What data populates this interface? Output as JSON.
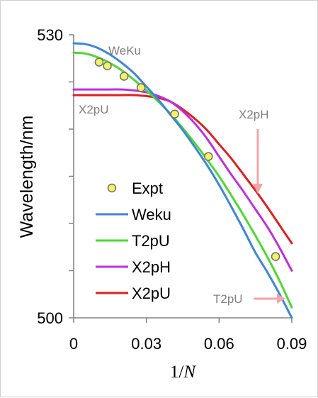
{
  "chart_data": {
    "type": "line",
    "title": "",
    "xlabel": "1/N",
    "ylabel": "Wavelength/nm",
    "xlim": [
      0,
      0.09
    ],
    "ylim": [
      500,
      530
    ],
    "xticks": [
      0,
      0.03,
      0.06,
      0.09
    ],
    "x_tick_labels": [
      "0",
      "0.03",
      "0.06",
      "0.09"
    ],
    "yticks": [
      500,
      505,
      510,
      515,
      520,
      525,
      530
    ],
    "y_tick_labels": [
      "500",
      "",
      "",
      "",
      "",
      "",
      "530"
    ],
    "grid": false,
    "legend_position": "left-middle",
    "series": [
      {
        "name": "Expt",
        "kind": "scatter",
        "color": "#f2f263",
        "edge_color": "#6e6e6e",
        "x": [
          0.0105,
          0.0139,
          0.0208,
          0.0278,
          0.0417,
          0.0556,
          0.0833
        ],
        "y": [
          527.1,
          526.7,
          525.6,
          524.4,
          521.6,
          517.1,
          506.5
        ]
      },
      {
        "name": "Weku",
        "kind": "line",
        "color": "#3c86d8",
        "x": [
          0,
          0.005,
          0.01,
          0.015,
          0.02,
          0.025,
          0.03,
          0.035,
          0.04,
          0.045,
          0.05,
          0.055,
          0.06,
          0.065,
          0.07,
          0.075,
          0.08,
          0.085,
          0.09
        ],
        "y": [
          529.1,
          529.0,
          528.6,
          527.9,
          527.0,
          525.9,
          524.5,
          523.1,
          521.5,
          519.9,
          518.1,
          516.2,
          514.1,
          511.8,
          509.4,
          506.9,
          504.8,
          502.5,
          500.0
        ]
      },
      {
        "name": "T2pU",
        "kind": "line",
        "color": "#4cd930",
        "x": [
          0,
          0.005,
          0.01,
          0.015,
          0.02,
          0.025,
          0.03,
          0.035,
          0.04,
          0.045,
          0.05,
          0.055,
          0.06,
          0.065,
          0.07,
          0.075,
          0.08,
          0.085,
          0.09
        ],
        "y": [
          528.1,
          528.0,
          527.6,
          527.0,
          526.2,
          525.2,
          524.1,
          522.9,
          521.6,
          520.1,
          518.5,
          516.8,
          515.0,
          513.0,
          510.9,
          508.7,
          506.4,
          503.9,
          501.1
        ]
      },
      {
        "name": "X2pH",
        "kind": "line",
        "color": "#bf2fe0",
        "x": [
          0,
          0.005,
          0.01,
          0.015,
          0.02,
          0.025,
          0.03,
          0.035,
          0.04,
          0.045,
          0.05,
          0.055,
          0.06,
          0.065,
          0.07,
          0.075,
          0.08,
          0.085,
          0.09
        ],
        "y": [
          524.2,
          524.2,
          524.2,
          524.2,
          524.2,
          524.1,
          523.9,
          523.5,
          522.9,
          521.9,
          520.6,
          519.0,
          517.1,
          515.2,
          513.4,
          511.5,
          509.6,
          507.4,
          505.0
        ]
      },
      {
        "name": "X2pU",
        "kind": "line",
        "color": "#e01f1f",
        "x": [
          0,
          0.005,
          0.01,
          0.015,
          0.02,
          0.025,
          0.03,
          0.035,
          0.04,
          0.045,
          0.05,
          0.055,
          0.06,
          0.065,
          0.07,
          0.075,
          0.08,
          0.085,
          0.09
        ],
        "y": [
          523.6,
          523.6,
          523.6,
          523.6,
          523.6,
          523.6,
          523.5,
          523.3,
          522.9,
          522.1,
          521.1,
          519.9,
          518.4,
          516.9,
          515.2,
          513.5,
          511.7,
          509.8,
          507.9
        ]
      }
    ],
    "annotations": [
      {
        "text": "WeKu",
        "color": "#808080"
      },
      {
        "text": "X2pU",
        "color": "#808080"
      },
      {
        "text": "X2pH",
        "color": "#808080",
        "arrow": "down",
        "arrow_color": "#f4a5a5"
      },
      {
        "text": "T2pU",
        "color": "#808080",
        "arrow": "right",
        "arrow_color": "#f4a5a5"
      }
    ]
  }
}
